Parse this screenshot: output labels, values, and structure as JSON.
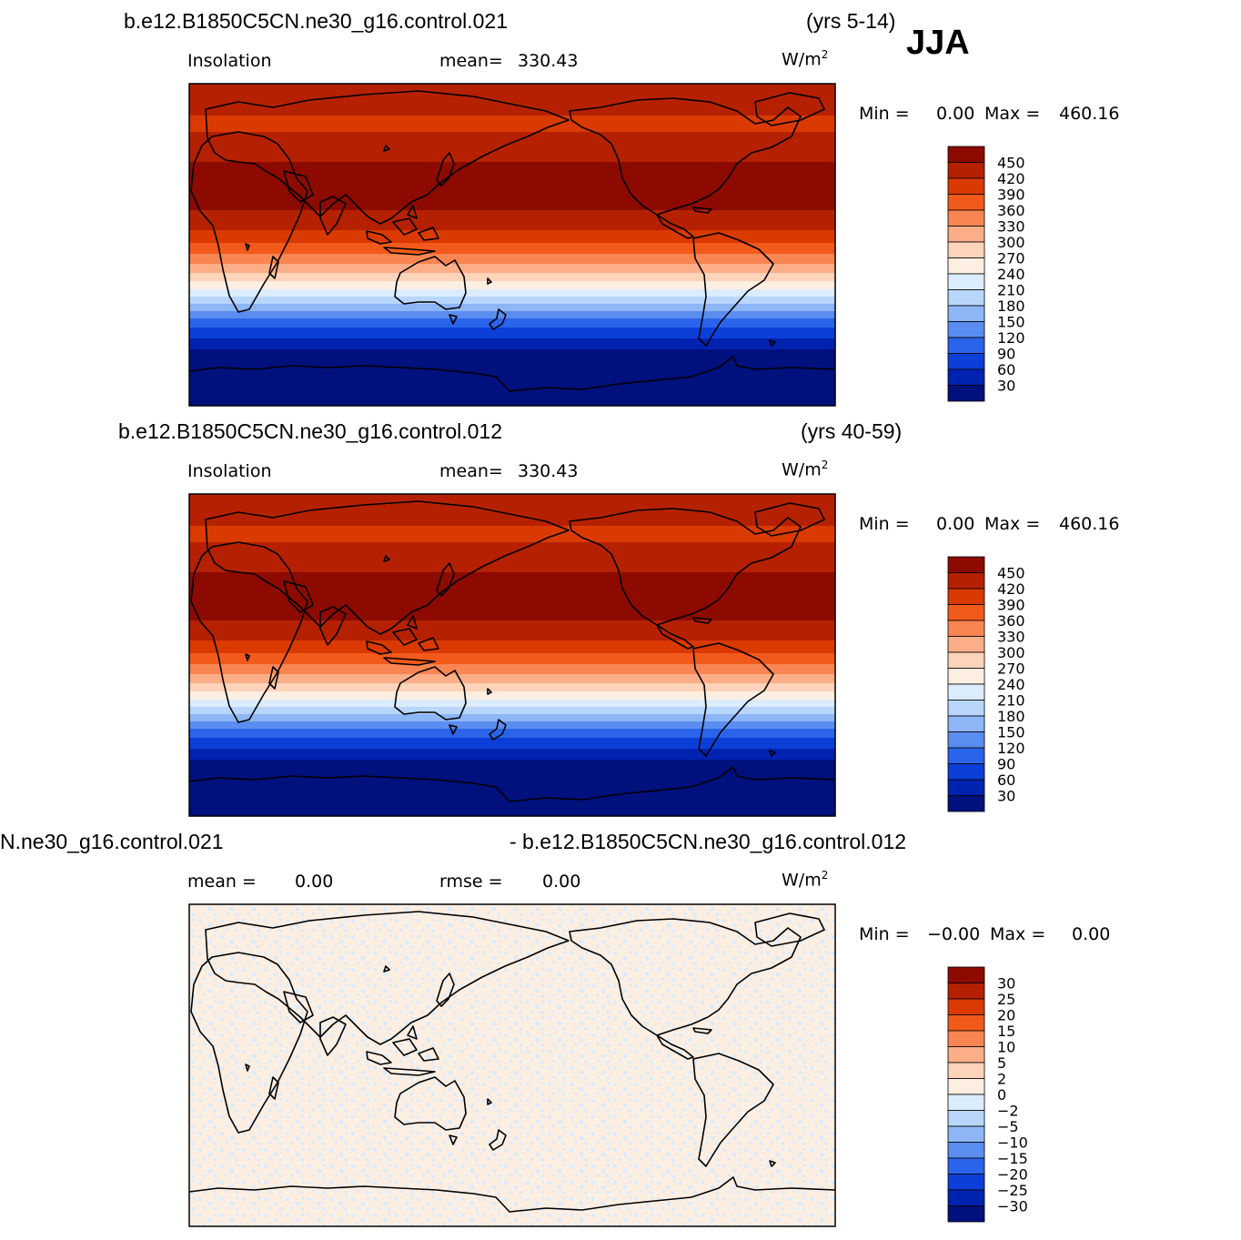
{
  "season": "JJA",
  "panels": [
    {
      "case": "b.e12.B1850C5CN.ne30_g16.control.021",
      "years": "(yrs 5-14)",
      "field": "Insolation",
      "stat_label": "mean=",
      "stat_value": "330.43",
      "units_base": "W/m",
      "units_exp": "2",
      "min_label": "Min =",
      "min_value": "0.00",
      "max_label": "Max =",
      "max_value": "460.16",
      "colorbar": {
        "labels": [
          "450",
          "420",
          "390",
          "360",
          "330",
          "300",
          "270",
          "240",
          "210",
          "180",
          "150",
          "120",
          "90",
          "60",
          "30"
        ],
        "colors": [
          "#8c0a00",
          "#b52100",
          "#da3a00",
          "#f25a1c",
          "#f98552",
          "#fcae88",
          "#fdd3b9",
          "#fdeee2",
          "#dbecfc",
          "#b8d6fb",
          "#8db6f6",
          "#5b8df0",
          "#2a64ea",
          "#0c3fd8",
          "#0022b0",
          "#00107d"
        ]
      }
    },
    {
      "case": "b.e12.B1850C5CN.ne30_g16.control.012",
      "years": "(yrs 40-59)",
      "field": "Insolation",
      "stat_label": "mean=",
      "stat_value": "330.43",
      "units_base": "W/m",
      "units_exp": "2",
      "min_label": "Min =",
      "min_value": "0.00",
      "max_label": "Max =",
      "max_value": "460.16",
      "colorbar": {
        "labels": [
          "450",
          "420",
          "390",
          "360",
          "330",
          "300",
          "270",
          "240",
          "210",
          "180",
          "150",
          "120",
          "90",
          "60",
          "30"
        ],
        "colors": [
          "#8c0a00",
          "#b52100",
          "#da3a00",
          "#f25a1c",
          "#f98552",
          "#fcae88",
          "#fdd3b9",
          "#fdeee2",
          "#dbecfc",
          "#b8d6fb",
          "#8db6f6",
          "#5b8df0",
          "#2a64ea",
          "#0c3fd8",
          "#0022b0",
          "#00107d"
        ]
      }
    },
    {
      "case": "N.ne30_g16.control.021",
      "case_right": "- b.e12.B1850C5CN.ne30_g16.control.012",
      "field": "mean =",
      "field_value": "0.00",
      "stat_label": "rmse =",
      "stat_value": "0.00",
      "units_base": "W/m",
      "units_exp": "2",
      "min_label": "Min =",
      "min_value": "−0.00",
      "max_label": "Max =",
      "max_value": "0.00",
      "colorbar": {
        "labels": [
          "30",
          "25",
          "20",
          "15",
          "10",
          "5",
          "2",
          "0",
          "−2",
          "−5",
          "−10",
          "−15",
          "−20",
          "−25",
          "−30"
        ],
        "colors": [
          "#8c0a00",
          "#b52100",
          "#da3a00",
          "#f25a1c",
          "#f98552",
          "#fcae88",
          "#fdd3b9",
          "#fdeee2",
          "#dbecfc",
          "#b8d6fb",
          "#8db6f6",
          "#5b8df0",
          "#2a64ea",
          "#0c3fd8",
          "#0022b0",
          "#00107d"
        ]
      }
    }
  ]
}
